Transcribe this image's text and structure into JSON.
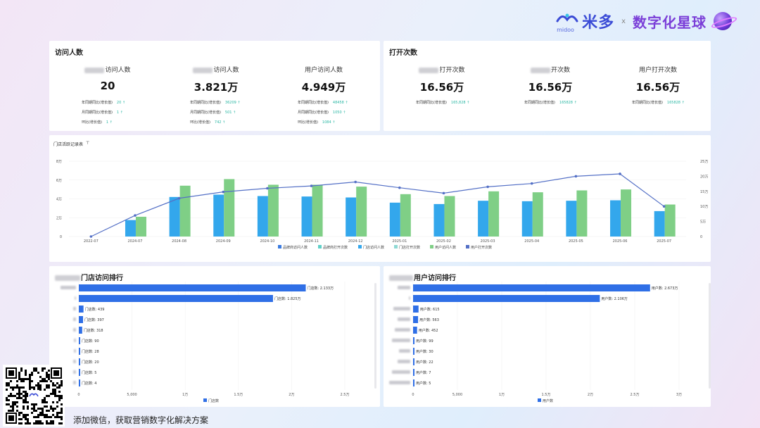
{
  "brand": {
    "logo_text": "米多",
    "logo_sub": "midoo",
    "separator": "x",
    "partner": "数字化星球"
  },
  "visitors": {
    "title": "访问人数",
    "kpis": [
      {
        "label": "访问人数",
        "value": "20",
        "blurred_prefix": true,
        "metrics": [
          {
            "label": "年同期同比(增长值)",
            "value": "20 ↑"
          },
          {
            "label": "月同期同比(增长值)",
            "value": "1 ↑"
          },
          {
            "label": "环比(增长值)",
            "value": "1 ↑"
          }
        ]
      },
      {
        "label": "访问人数",
        "value": "3.821万",
        "blurred_prefix": true,
        "metrics": [
          {
            "label": "年同期同比(增长值)",
            "value": "36209 ↑"
          },
          {
            "label": "月同期同比(增长值)",
            "value": "501 ↑"
          },
          {
            "label": "环比(增长值)",
            "value": "742 ↑"
          }
        ]
      },
      {
        "label": "用户访问人数",
        "value": "4.949万",
        "blurred_prefix": false,
        "metrics": [
          {
            "label": "年同期同比(增长值)",
            "value": "48458 ↑"
          },
          {
            "label": "月同期同比(增长值)",
            "value": "1050 ↑"
          },
          {
            "label": "环比(增长值)",
            "value": "1084 ↑"
          }
        ]
      }
    ]
  },
  "opens": {
    "title": "打开次数",
    "kpis": [
      {
        "label": "打开次数",
        "value": "16.56万",
        "blurred_prefix": true,
        "metrics": [
          {
            "label": "年同期同比(增长值)",
            "value": "165,828 ↑"
          }
        ]
      },
      {
        "label": "开次数",
        "value": "16.56万",
        "blurred_prefix": true,
        "metrics": [
          {
            "label": "年同期同比(增长值)",
            "value": "165828 ↑"
          }
        ]
      },
      {
        "label": "用户打开次数",
        "value": "16.56万",
        "blurred_prefix": false,
        "metrics": [
          {
            "label": "年同期同比(增长值)",
            "value": "165828 ↑"
          }
        ]
      }
    ]
  },
  "chart_data": [
    {
      "type": "bar",
      "title": "门店活跃记录表",
      "categories": [
        "2022-07",
        "2024-07",
        "2024-08",
        "2024-09",
        "2024-10",
        "2024-11",
        "2024-12",
        "2025-01",
        "2025-02",
        "2025-03",
        "2025-04",
        "2025-05",
        "2025-06",
        "2025-07"
      ],
      "y_ticks": [
        "0",
        "2万",
        "4万",
        "6万",
        "8万"
      ],
      "y2_ticks": [
        "0",
        "5万",
        "10万",
        "15万",
        "20万",
        "25万"
      ],
      "ylim": [
        0,
        80000
      ],
      "y2lim": [
        0,
        250000
      ],
      "series": [
        {
          "name": "门店访问人数",
          "kind": "bar",
          "axis": "left",
          "color": "#33a7ec",
          "values": [
            0,
            17500,
            42000,
            44500,
            43000,
            42500,
            41500,
            36000,
            34500,
            38000,
            37500,
            38000,
            38500,
            27000
          ]
        },
        {
          "name": "用户访问人数",
          "kind": "bar",
          "axis": "left",
          "color": "#7fcf86",
          "values": [
            0,
            21000,
            54000,
            61000,
            55000,
            55000,
            53000,
            45000,
            43000,
            48000,
            47000,
            49000,
            50000,
            34000
          ]
        },
        {
          "name": "用户打开次数",
          "kind": "line",
          "axis": "right",
          "color": "#5470c6",
          "values": [
            0,
            70000,
            127000,
            148000,
            160000,
            168000,
            181000,
            162000,
            144000,
            165000,
            176000,
            200000,
            208000,
            100000
          ]
        }
      ],
      "legend": [
        "品牌商访问人数",
        "品牌商打开次数",
        "门店访问人数",
        "门店打开次数",
        "用户访问人数",
        "用户打开次数"
      ],
      "legend_colors": [
        "#3a7be0",
        "#5fd0c8",
        "#33a7ec",
        "#8fd9d4",
        "#7fcf86",
        "#5470c6"
      ],
      "legend_position": "bottom"
    },
    {
      "type": "bar",
      "orientation": "horizontal",
      "title": "门店访问排行",
      "series_name": "门店数",
      "bar_labels": [
        "门店数: 2.133万",
        "门店数: 1.825万",
        "门店数: 439",
        "门店数: 397",
        "门店数: 318",
        "门店数: 90",
        "门店数: 28",
        "门店数: 20",
        "门店数: 5",
        "门店数: 4"
      ],
      "values": [
        21330,
        18250,
        439,
        397,
        318,
        90,
        28,
        20,
        5,
        4
      ],
      "x_ticks": [
        "0",
        "5,000",
        "1万",
        "1.5万",
        "2万",
        "2.5万"
      ],
      "xlim": [
        0,
        25000
      ]
    },
    {
      "type": "bar",
      "orientation": "horizontal",
      "title": "用户访问排行",
      "series_name": "用户数",
      "bar_labels": [
        "用户数: 2.673万",
        "用户数: 2.106万",
        "用户数: 615",
        "用户数: 563",
        "用户数: 452",
        "用户数: 99",
        "用户数: 30",
        "用户数: 22",
        "用户数: 7",
        "用户数: 5"
      ],
      "values": [
        26730,
        21060,
        615,
        563,
        452,
        99,
        30,
        22,
        7,
        5
      ],
      "x_ticks": [
        "0",
        "5,000",
        "1万",
        "1.5万",
        "2万",
        "2.5万",
        "3万"
      ],
      "xlim": [
        0,
        30000
      ]
    }
  ],
  "footer": {
    "text": "添加微信，获取营销数字化解决方案"
  }
}
